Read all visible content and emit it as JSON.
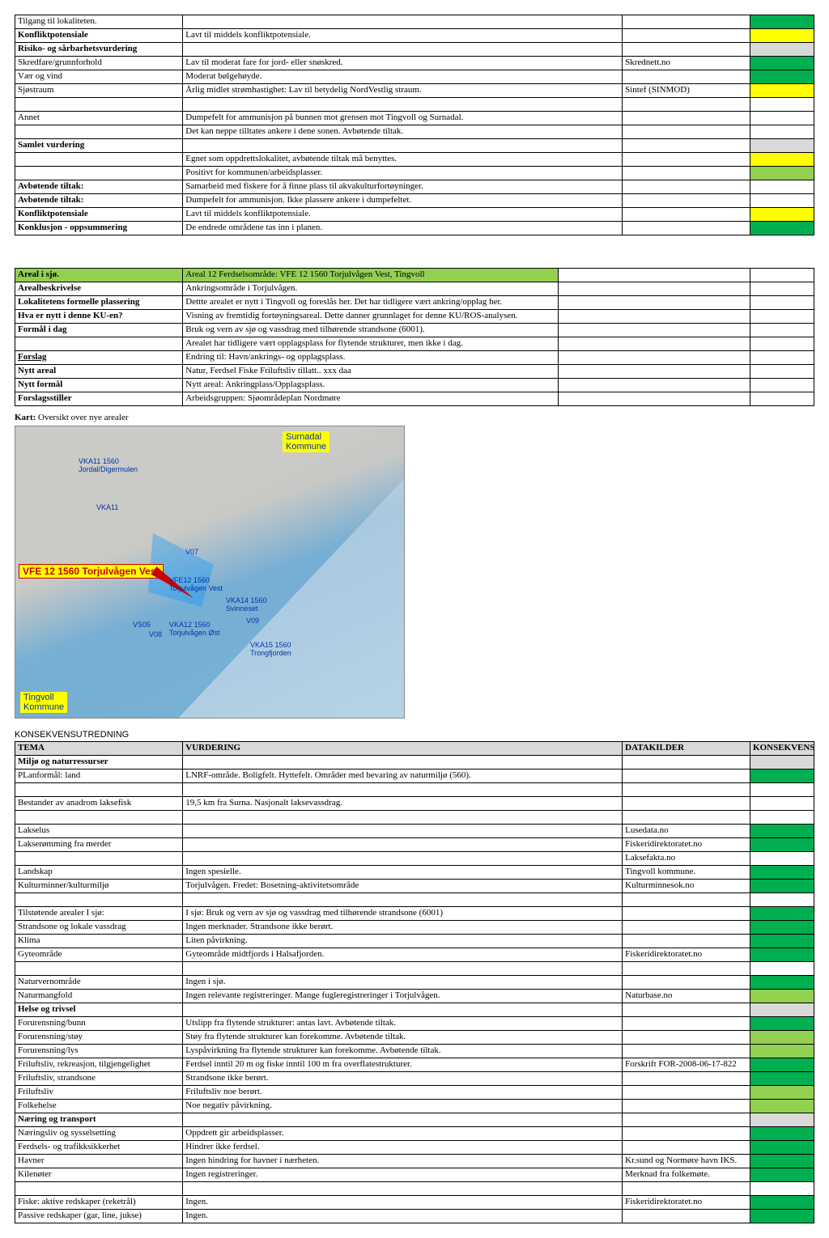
{
  "colors": {
    "green": "#00b050",
    "lgreen": "#92d050",
    "yellow": "#ffff00",
    "gray": "#d9d9d9",
    "border": "#000000"
  },
  "table1": {
    "rows": [
      {
        "label": "Tilgang til lokaliteten.",
        "assess": "",
        "source": "",
        "k": "green"
      },
      {
        "label": "Konfliktpotensiale",
        "assess": "Lavt til middels konfliktpotensiale.",
        "source": "",
        "k": "yellow",
        "bold": true
      },
      {
        "label": "Risiko- og sårbarhetsvurdering",
        "assess": "",
        "source": "",
        "k": "gray",
        "bold": true
      },
      {
        "label": "Skredfare/grunnforhold",
        "assess": "Lav til moderat fare  for jord- eller snøskred.",
        "source": "Skrednett.no",
        "k": "green"
      },
      {
        "label": "Vær og vind",
        "assess": "Moderat bølgehøyde.",
        "source": "",
        "k": "green"
      },
      {
        "label": "Sjøstraum",
        "assess": "Årlig midlet strømhastighet: Lav til betydelig NordVestlig straum.",
        "source": "Sintef (SINMOD)",
        "k": "yellow"
      },
      {
        "label": "",
        "assess": "",
        "source": "",
        "k": ""
      },
      {
        "label": "Annet",
        "assess": "Dumpefelt for ammunisjon på bunnen mot grensen mot Tingvoll og Surnadal.",
        "source": "",
        "k": ""
      },
      {
        "label": "",
        "assess": "Det kan neppe tilltates ankere i dene sonen. Avbøtende tiltak.",
        "source": "",
        "k": ""
      },
      {
        "label": "Samlet vurdering",
        "assess": "",
        "source": "",
        "k": "gray",
        "bold": true
      },
      {
        "label": "",
        "assess": "Egnet som oppdrettslokalitet, avbøtende tiltak må benyttes.",
        "source": "",
        "k": "yellow"
      },
      {
        "label": "",
        "assess": "Positivt for kommunen/arbeidsplasser.",
        "source": "",
        "k": "lgreen"
      },
      {
        "label": "Avbøtende tiltak:",
        "assess": "Samarbeid med fiskere for å finne plass til akvakulturfortøyninger.",
        "source": "",
        "k": "",
        "bold": true
      },
      {
        "label": "Avbøtende tiltak:",
        "assess": "Dumpefelt for ammunisjon. Ikke plassere ankere i dumpefeltet.",
        "source": "",
        "k": "",
        "bold": true
      },
      {
        "label": "Konfliktpotensiale",
        "assess": "Lavt til middels konfliktpotensiale.",
        "source": "",
        "k": "yellow",
        "bold": true
      },
      {
        "label": "Konklusjon - oppsummering",
        "assess": "De endrede områdene tas inn i planen.",
        "source": "",
        "k": "green",
        "bold": true
      }
    ]
  },
  "table2": {
    "rows": [
      {
        "label": "Areal i sjø.",
        "assess": "Areal 12 Ferdselsområde: VFE 12 1560 Torjulvågen Vest, Tingvoll",
        "hdr": true,
        "bold": true
      },
      {
        "label": "Arealbeskrivelse",
        "assess": "Ankringsområde i Torjulvågen.",
        "bold": true
      },
      {
        "label": "Lokalitetens formelle plassering",
        "assess": "Dettte arealet er nytt i Tingvoll og foreslås her. Det har tidligere vært ankring/opplag her.",
        "bold": true
      },
      {
        "label": "Hva er nytt i denne KU-en?",
        "assess": "Visning av fremtidig fortøyningsareal. Dette danner grunnlaget for denne KU/ROS-analysen.",
        "bold": true
      },
      {
        "label": "Formål i dag",
        "assess": "Bruk og vern av sjø og vassdrag med tilhørende strandsone (6001).",
        "bold": true
      },
      {
        "label": "",
        "assess": "Arealet har tidligere vært opplagsplass for flytende strukturer, men ikke i dag."
      },
      {
        "label": "Forslag",
        "assess": "Endring til: Havn/ankrings- og opplagsplass.",
        "bold": true,
        "underline": true
      },
      {
        "label": "Nytt areal",
        "assess": "Natur, Ferdsel Fiske Friluftsliv tillatt.. xxx daa",
        "bold": true
      },
      {
        "label": "Nytt formål",
        "assess": "Nytt areal: Ankringplass/Opplagsplass.",
        "bold": true
      },
      {
        "label": "Forslagsstiller",
        "assess": "Arbeidsgruppen: Sjøområdeplan Nordmøre",
        "bold": true
      }
    ]
  },
  "mapCaption": "Kart: Oversikt over nye arealer",
  "mapCaptionBold": "Kart:",
  "mapLabels": {
    "surnadal": "Surnadal\nKommune",
    "tingvoll": "Tingvoll\nKommune",
    "vfe12": "VFE 12 1560 Torjulvågen Vest",
    "vka11_top": "VKA11 1560\nJordal/Digermulen",
    "vka11": "VKA11",
    "v07": "V07",
    "vfe12_small": "VFE12 1560\nTorjulvågen Vest",
    "vka14": "VKA14 1560\nSvinneset",
    "v09": "V09",
    "vs05": "VS05",
    "v08": "V08",
    "vka12": "VKA12 1560\nTorjulvågen Øst",
    "vka15": "VKA15 1560\nTrongfjorden"
  },
  "table3": {
    "title": "KONSEKVENSUTREDNING",
    "headers": {
      "tema": "TEMA",
      "vurdering": "VURDERING",
      "datakilder": "DATAKILDER",
      "konsekvens": "KONSEKVENS"
    },
    "rows": [
      {
        "label": "Miljø og naturressurser",
        "assess": "",
        "source": "",
        "k": "gray",
        "bold": true
      },
      {
        "label": "PLanformål: land",
        "assess": "LNRF-område. Boligfelt. Hyttefelt. Områder med bevaring av naturmiljø (560).",
        "source": "",
        "k": "green"
      },
      {
        "label": "",
        "assess": "",
        "source": "",
        "k": ""
      },
      {
        "label": "Bestander av anadrom laksefisk",
        "assess": "19,5  km fra Surna. Nasjonalt laksevassdrag.",
        "source": "",
        "k": ""
      },
      {
        "label": "",
        "assess": "",
        "source": "",
        "k": ""
      },
      {
        "label": "      Lakselus",
        "assess": "",
        "source": "Lusedata.no",
        "k": "green"
      },
      {
        "label": "      Lakserømming fra merder",
        "assess": "",
        "source": "Fiskeridirektoratet.no",
        "k": "green"
      },
      {
        "label": "",
        "assess": "",
        "source": "Laksefakta.no",
        "k": ""
      },
      {
        "label": "Landskap",
        "assess": "Ingen spesielle.",
        "source": "Tingvoll kommune.",
        "k": "green"
      },
      {
        "label": "Kulturminner/kulturmiljø",
        "assess": "Torjulvågen. Fredet: Bosetning-aktivitetsområde",
        "source": "Kulturminnesok.no",
        "k": "green"
      },
      {
        "label": "",
        "assess": "",
        "source": "",
        "k": ""
      },
      {
        "label": "Tilstøtende arealer                    I sjø:",
        "assess": "I sjø: Bruk og vern av sjø og vassdrag med tilhørende strandsone (6001)",
        "source": "",
        "k": "green"
      },
      {
        "label": "Strandsone og lokale vassdrag",
        "assess": "Ingen merknader. Strandsone ikke berørt.",
        "source": "",
        "k": "green"
      },
      {
        "label": "Klima",
        "assess": "Liten påvirkning.",
        "source": "",
        "k": "green"
      },
      {
        "label": "Gyteområde",
        "assess": "Gyteområde midtfjords i Halsafjorden.",
        "source": "Fiskeridirektoratet.no",
        "k": "green"
      },
      {
        "label": "",
        "assess": "",
        "source": "",
        "k": ""
      },
      {
        "label": "Naturvernområde",
        "assess": "Ingen i sjø.",
        "source": "",
        "k": "green"
      },
      {
        "label": "Naturmangfold",
        "assess": "Ingen relevante registreringer. Mange fugleregistreringer i Torjulvågen.",
        "source": "Naturbase.no",
        "k": "lgreen"
      },
      {
        "label": "Helse og trivsel",
        "assess": "",
        "source": "",
        "k": "gray",
        "bold": true
      },
      {
        "label": "Forurensning/bunn",
        "assess": "Utslipp fra flytende strukturer: antas lavt. Avbøtende tiltak.",
        "source": "",
        "k": "green"
      },
      {
        "label": "Forurensning/støy",
        "assess": "Støy fra flytende strukturer kan forekomme. Avbøtende tiltak.",
        "source": "",
        "k": "lgreen"
      },
      {
        "label": "Forurensning/lys",
        "assess": "Lyspåvirkning fra flytende strukturer kan forekomme. Avbøtende tiltak.",
        "source": "",
        "k": "lgreen"
      },
      {
        "label": "Friluftsliv, rekreasjon, tilgjengelighet",
        "assess": "Ferdsel inntil 20 m og fiske inntil 100 m fra overflatestrukturer.",
        "source": "Forskrift FOR-2008-06-17-822",
        "k": "green"
      },
      {
        "label": "Friluftsliv, strandsone",
        "assess": "Strandsone ikke berørt.",
        "source": "",
        "k": "green"
      },
      {
        "label": "Friluftsliv",
        "assess": "Friluftsliv noe berørt.",
        "source": "",
        "k": "lgreen"
      },
      {
        "label": "Folkehelse",
        "assess": "Noe negativ påvirkning.",
        "source": "",
        "k": "lgreen"
      },
      {
        "label": "Næring og transport",
        "assess": "",
        "source": "",
        "k": "gray",
        "bold": true
      },
      {
        "label": "Næringsliv og sysselsetting",
        "assess": "Oppdrett gir arbeidsplasser.",
        "source": "",
        "k": "green"
      },
      {
        "label": "Ferdsels- og trafikksikkerhet",
        "assess": "Hindrer ikke ferdsel.",
        "source": "",
        "k": "green"
      },
      {
        "label": "Havner",
        "assess": "Ingen hindring for havner i nærheten.",
        "source": "Kr.sund og Normøre havn IKS.",
        "k": "green"
      },
      {
        "label": "Kilenøter",
        "assess": "Ingen registreringer.",
        "source": "Merknad fra folkemøte.",
        "k": "green"
      },
      {
        "label": "",
        "assess": "",
        "source": "",
        "k": ""
      },
      {
        "label": "Fiske: aktive redskaper (reketrål)",
        "assess": "Ingen.",
        "source": "Fiskeridirektoratet.no",
        "k": "green"
      },
      {
        "label": "Passive redskaper (gar, line, jukse)",
        "assess": "Ingen.",
        "source": "",
        "k": "green"
      }
    ]
  }
}
